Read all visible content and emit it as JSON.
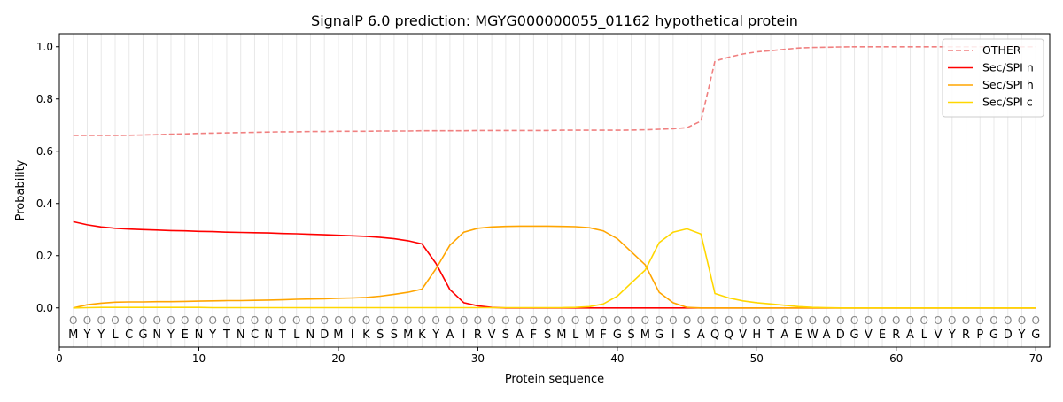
{
  "chart_data": {
    "type": "line",
    "title": "SignalP 6.0 prediction: MGYG000000055_01162 hypothetical protein",
    "xlabel": "Protein sequence",
    "ylabel": "Probability",
    "xlim": [
      0,
      71
    ],
    "ylim": [
      -0.15,
      1.05
    ],
    "xticks": [
      0,
      10,
      20,
      30,
      40,
      50,
      60,
      70
    ],
    "yticks": [
      0.0,
      0.2,
      0.4,
      0.6,
      0.8,
      1.0
    ],
    "legend_position": "top-right",
    "sequence": "MYYLCGNYENYTNCNTLNDMIKSSMKYAIRVSAFSMLMFGSMGISAQQVHTAEWADGVERALVYRPGDYG",
    "region_label": "O",
    "series": [
      {
        "name": "OTHER",
        "color": "#f08080",
        "dash": true,
        "values": [
          0.66,
          0.66,
          0.66,
          0.66,
          0.661,
          0.662,
          0.663,
          0.665,
          0.666,
          0.668,
          0.669,
          0.67,
          0.671,
          0.672,
          0.673,
          0.674,
          0.674,
          0.675,
          0.675,
          0.676,
          0.676,
          0.676,
          0.677,
          0.677,
          0.677,
          0.678,
          0.678,
          0.678,
          0.678,
          0.679,
          0.679,
          0.679,
          0.679,
          0.679,
          0.679,
          0.68,
          0.68,
          0.68,
          0.68,
          0.68,
          0.681,
          0.682,
          0.684,
          0.686,
          0.69,
          0.715,
          0.945,
          0.96,
          0.972,
          0.98,
          0.985,
          0.99,
          0.995,
          0.997,
          0.998,
          0.999,
          1.0,
          1.0,
          1.0,
          1.0,
          1.0,
          1.0,
          1.0,
          1.0,
          1.0,
          1.0,
          1.0,
          1.0,
          1.0,
          1.0
        ]
      },
      {
        "name": "Sec/SPI n",
        "color": "#ff0000",
        "dash": false,
        "values": [
          0.33,
          0.318,
          0.31,
          0.305,
          0.302,
          0.3,
          0.298,
          0.296,
          0.295,
          0.293,
          0.292,
          0.29,
          0.289,
          0.288,
          0.287,
          0.285,
          0.284,
          0.282,
          0.28,
          0.278,
          0.276,
          0.274,
          0.27,
          0.265,
          0.257,
          0.245,
          0.17,
          0.07,
          0.02,
          0.008,
          0.002,
          0,
          0,
          0,
          0,
          0,
          0,
          0,
          0,
          0,
          0,
          0,
          0,
          0,
          0,
          0,
          0,
          0,
          0,
          0,
          0,
          0,
          0,
          0,
          0,
          0,
          0,
          0,
          0,
          0,
          0,
          0,
          0,
          0,
          0,
          0,
          0,
          0,
          0,
          0
        ]
      },
      {
        "name": "Sec/SPI h",
        "color": "#ffa500",
        "dash": false,
        "values": [
          0,
          0.012,
          0.018,
          0.022,
          0.023,
          0.023,
          0.024,
          0.024,
          0.025,
          0.026,
          0.027,
          0.028,
          0.028,
          0.029,
          0.03,
          0.031,
          0.033,
          0.034,
          0.035,
          0.037,
          0.038,
          0.04,
          0.045,
          0.052,
          0.06,
          0.072,
          0.15,
          0.24,
          0.29,
          0.305,
          0.31,
          0.312,
          0.313,
          0.313,
          0.313,
          0.312,
          0.311,
          0.307,
          0.295,
          0.265,
          0.215,
          0.165,
          0.06,
          0.02,
          0.002,
          0,
          0,
          0,
          0,
          0,
          0,
          0,
          0,
          0,
          0,
          0,
          0,
          0,
          0,
          0,
          0,
          0,
          0,
          0,
          0,
          0,
          0,
          0,
          0,
          0
        ]
      },
      {
        "name": "Sec/SPI c",
        "color": "#ffd700",
        "dash": false,
        "values": [
          0,
          0.001,
          0.002,
          0.002,
          0.002,
          0.002,
          0.002,
          0.002,
          0.002,
          0.002,
          0.001,
          0.001,
          0.001,
          0.001,
          0.001,
          0.001,
          0.001,
          0.001,
          0.001,
          0.001,
          0.001,
          0.001,
          0.001,
          0.001,
          0.001,
          0.001,
          0.001,
          0.001,
          0.001,
          0.001,
          0.001,
          0.001,
          0.001,
          0.001,
          0.001,
          0.001,
          0.002,
          0.005,
          0.015,
          0.045,
          0.095,
          0.145,
          0.25,
          0.29,
          0.303,
          0.283,
          0.055,
          0.038,
          0.027,
          0.02,
          0.015,
          0.01,
          0.005,
          0.002,
          0.001,
          0,
          0,
          0,
          0,
          0,
          0,
          0,
          0,
          0,
          0,
          0,
          0,
          0,
          0,
          0
        ]
      }
    ]
  }
}
